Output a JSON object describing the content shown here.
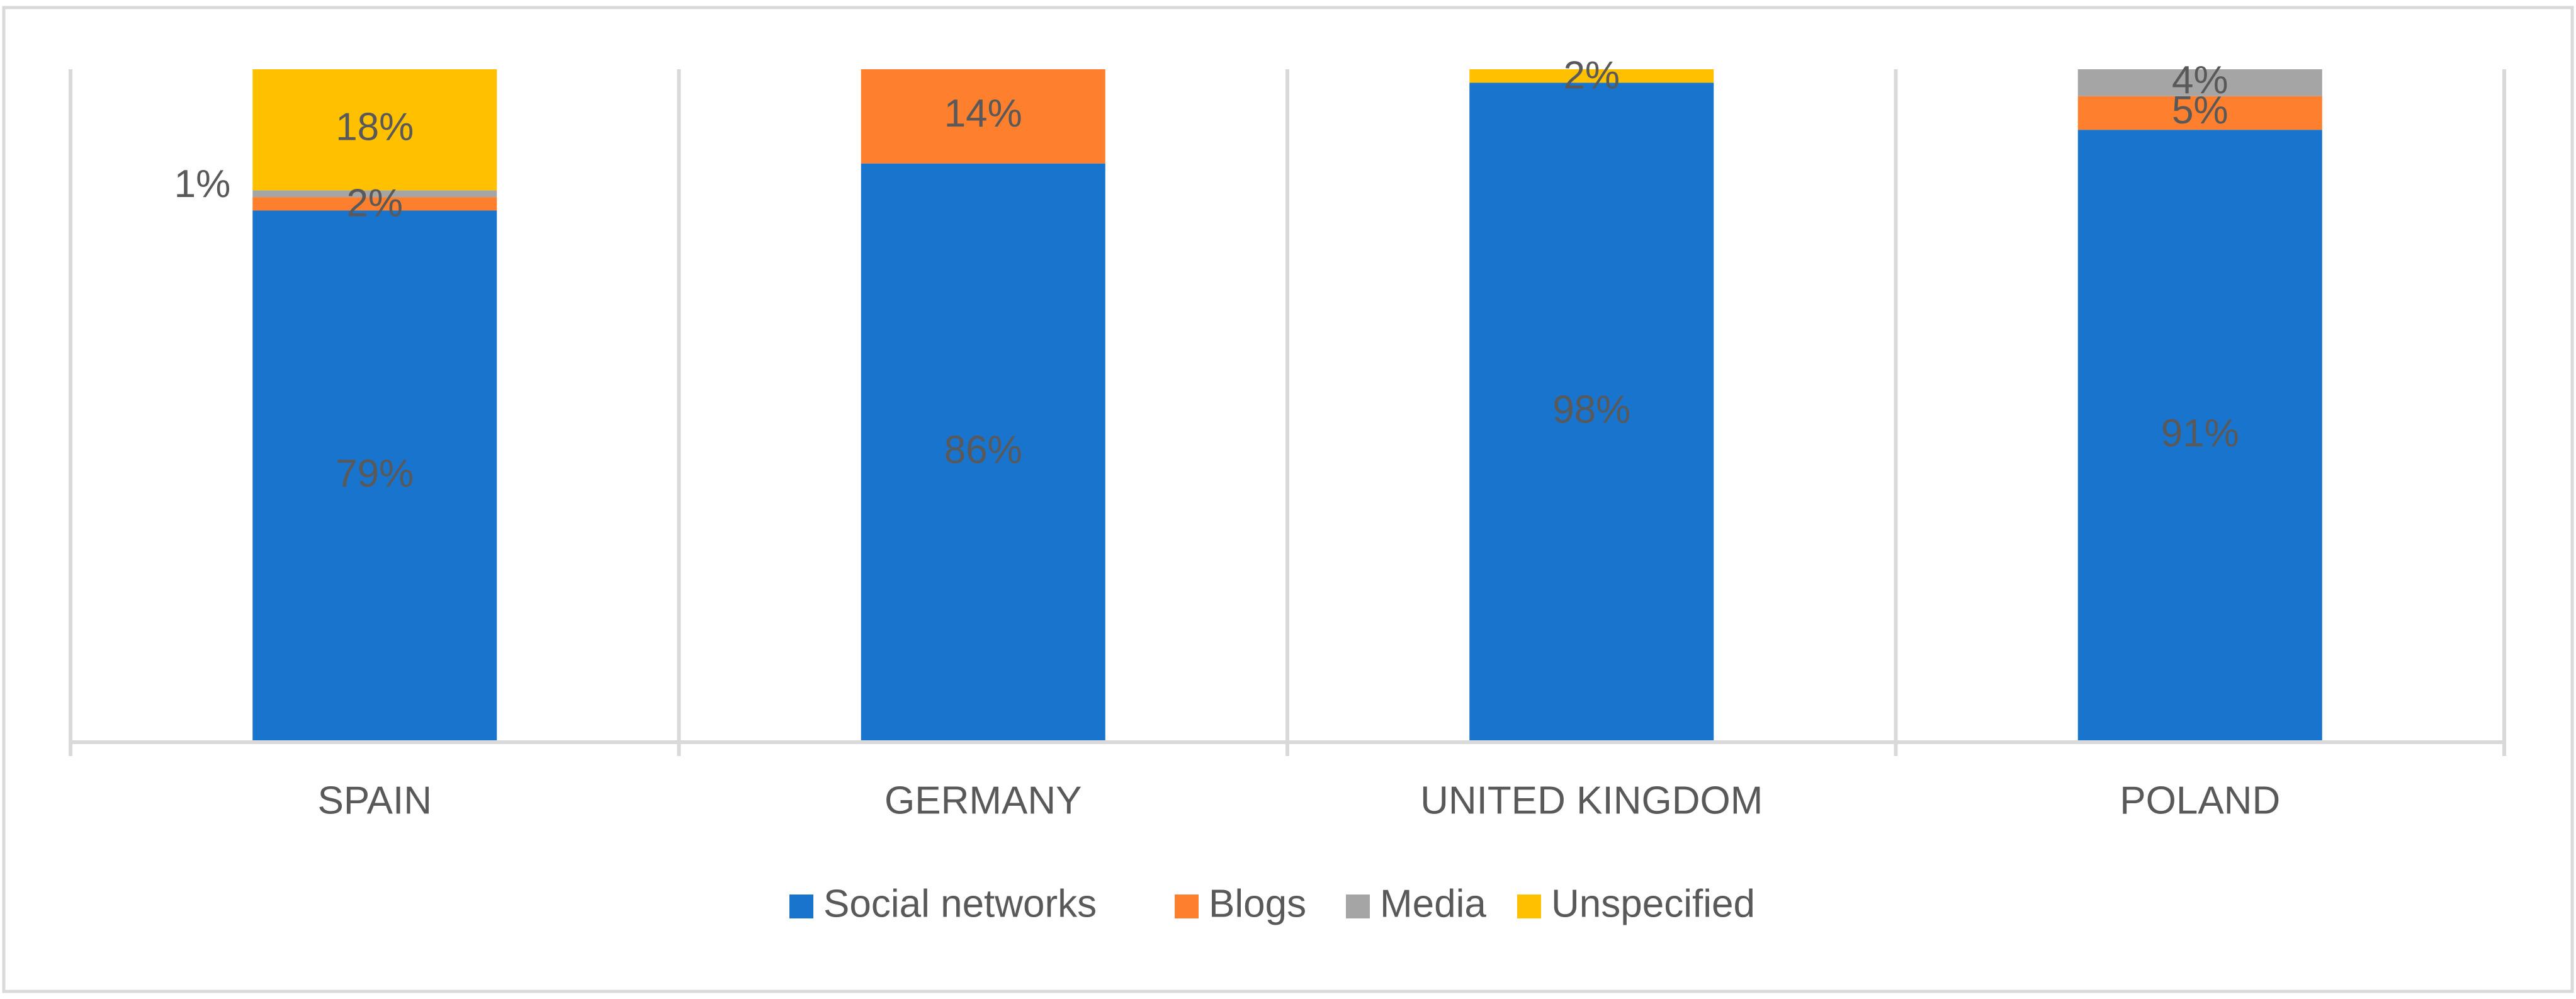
{
  "chart_data": {
    "type": "bar",
    "stacked": true,
    "normalized": true,
    "categories": [
      "SPAIN",
      "GERMANY",
      "UNITED KINGDOM",
      "POLAND"
    ],
    "series": [
      {
        "name": "Social networks",
        "color": "#1874cd",
        "values": [
          79,
          86,
          98,
          91
        ],
        "labels": [
          "79%",
          "86%",
          "98%",
          "91%"
        ]
      },
      {
        "name": "Blogs",
        "color": "#fe7f2d",
        "values": [
          2,
          14,
          0,
          5
        ],
        "labels": [
          "2%",
          "14%",
          "",
          "5%"
        ]
      },
      {
        "name": "Media",
        "color": "#a5a5a5",
        "values": [
          1,
          0,
          0,
          4
        ],
        "labels": [
          "1%",
          "",
          "",
          "4%"
        ]
      },
      {
        "name": "Unspecified",
        "color": "#ffc000",
        "values": [
          18,
          0,
          2,
          0
        ],
        "labels": [
          "18%",
          "",
          "2%",
          ""
        ]
      }
    ],
    "ylim": [
      0,
      100
    ],
    "grid": "vertical-separators",
    "legend": "bottom"
  }
}
